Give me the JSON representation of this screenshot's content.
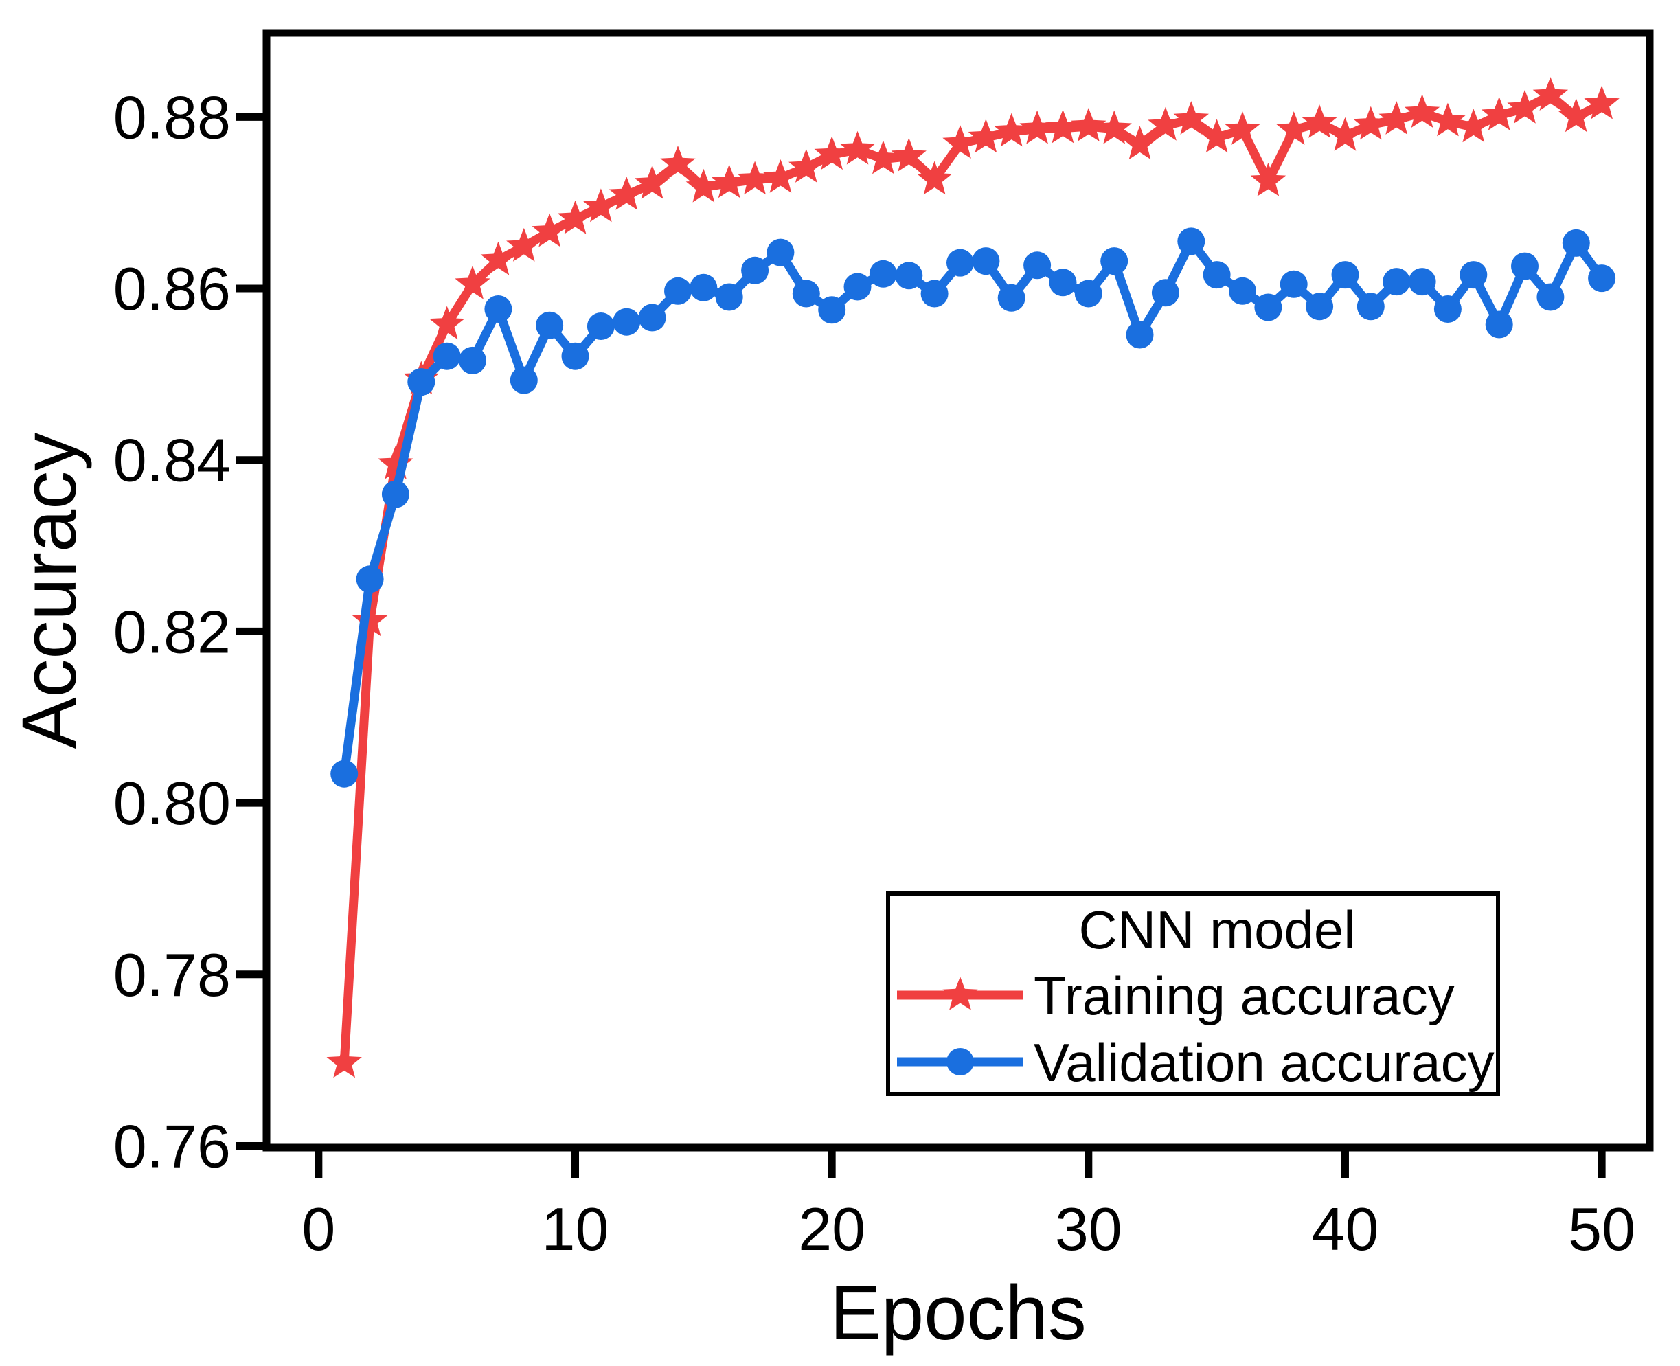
{
  "chart_data": {
    "type": "line",
    "title": "",
    "xlabel": "Epochs",
    "ylabel": "Accuracy",
    "xlim": [
      -2.03,
      51.87
    ],
    "ylim": [
      0.7598,
      0.8898
    ],
    "x_ticks": [
      0,
      10,
      20,
      30,
      40,
      50
    ],
    "y_ticks": [
      0.76,
      0.78,
      0.8,
      0.82,
      0.84,
      0.86,
      0.88
    ],
    "grid": false,
    "legend": {
      "title": "CNN model",
      "position": "lower-right"
    },
    "axis_color": "#000000",
    "x": [
      1,
      2,
      3,
      4,
      5,
      6,
      7,
      8,
      9,
      10,
      11,
      12,
      13,
      14,
      15,
      16,
      17,
      18,
      19,
      20,
      21,
      22,
      23,
      24,
      25,
      26,
      27,
      28,
      29,
      30,
      31,
      32,
      33,
      34,
      35,
      36,
      37,
      38,
      39,
      40,
      41,
      42,
      43,
      44,
      45,
      46,
      47,
      48,
      49,
      50
    ],
    "series": [
      {
        "name": "Training accuracy",
        "color": "#f04041",
        "marker": "star",
        "values": [
          0.7697,
          0.8212,
          0.8395,
          0.8494,
          0.8558,
          0.8605,
          0.8633,
          0.8649,
          0.8666,
          0.8681,
          0.8695,
          0.8709,
          0.8722,
          0.8745,
          0.8718,
          0.8723,
          0.8727,
          0.8729,
          0.8741,
          0.8756,
          0.8762,
          0.8751,
          0.8754,
          0.8727,
          0.8769,
          0.8776,
          0.8783,
          0.8786,
          0.8787,
          0.8789,
          0.8786,
          0.8768,
          0.879,
          0.8797,
          0.8776,
          0.8785,
          0.8725,
          0.8785,
          0.8793,
          0.8778,
          0.8791,
          0.8797,
          0.8805,
          0.8795,
          0.8788,
          0.8802,
          0.881,
          0.8825,
          0.88,
          0.8815
        ]
      },
      {
        "name": "Validation accuracy",
        "color": "#1a6fdf",
        "marker": "circle",
        "values": [
          0.8034,
          0.8261,
          0.836,
          0.8491,
          0.8521,
          0.8516,
          0.8576,
          0.8493,
          0.8557,
          0.8521,
          0.8556,
          0.8561,
          0.8566,
          0.8597,
          0.8601,
          0.859,
          0.8621,
          0.8642,
          0.8594,
          0.8575,
          0.8602,
          0.8617,
          0.8615,
          0.8594,
          0.863,
          0.8632,
          0.8589,
          0.8627,
          0.8607,
          0.8594,
          0.8632,
          0.8546,
          0.8595,
          0.8655,
          0.8616,
          0.8597,
          0.8578,
          0.8605,
          0.8579,
          0.8616,
          0.8579,
          0.8608,
          0.8608,
          0.8576,
          0.8616,
          0.8558,
          0.8626,
          0.859,
          0.8653,
          0.8612
        ]
      }
    ]
  }
}
